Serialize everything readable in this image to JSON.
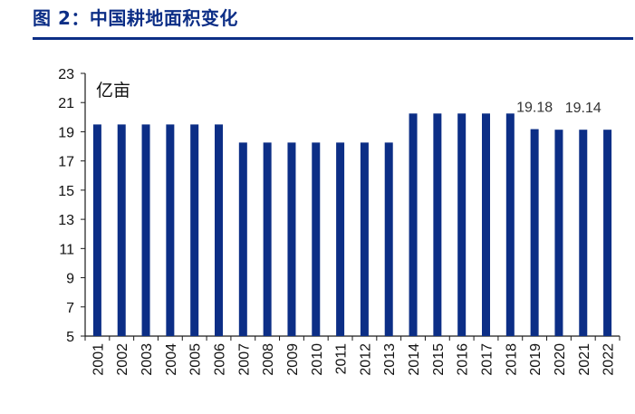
{
  "header": {
    "title": "图 2：中国耕地面积变化"
  },
  "colors": {
    "title": "#0c2e86",
    "bar": "#0c2e86",
    "axis": "#1a1a1a"
  },
  "chart_data": {
    "type": "bar",
    "unit": "亿亩",
    "categories": [
      "2001",
      "2002",
      "2003",
      "2004",
      "2005",
      "2006",
      "2007",
      "2008",
      "2009",
      "2010",
      "2011",
      "2012",
      "2013",
      "2014",
      "2015",
      "2016",
      "2017",
      "2018",
      "2019",
      "2020",
      "2021",
      "2022"
    ],
    "values": [
      19.5,
      19.5,
      19.5,
      19.5,
      19.5,
      19.5,
      18.26,
      18.26,
      18.26,
      18.26,
      18.26,
      18.26,
      18.26,
      20.25,
      20.25,
      20.25,
      20.25,
      20.25,
      19.18,
      19.14,
      19.14,
      19.14
    ],
    "ylim": [
      5,
      23
    ],
    "yticks": [
      "5",
      "7",
      "9",
      "11",
      "13",
      "15",
      "17",
      "19",
      "21",
      "23"
    ],
    "data_labels": [
      {
        "category": "2019",
        "text": "19.18"
      },
      {
        "category": "2021",
        "text": "19.14"
      }
    ],
    "grid": false,
    "legend": "none"
  }
}
